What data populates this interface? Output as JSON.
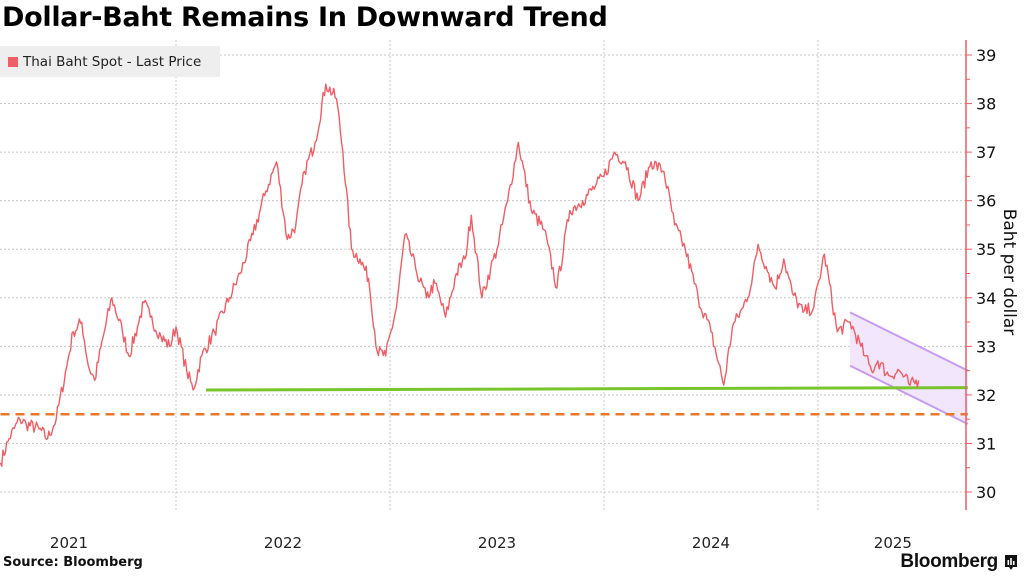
{
  "header": {
    "title": "Dollar-Baht Remains In Downward Trend"
  },
  "footer": {
    "source": "Source: Bloomberg",
    "brand": "Bloomberg",
    "brand_icon": "bloomberg-terminal-icon"
  },
  "colors": {
    "series": "#ef5e64",
    "axis": "#ef5e64",
    "support_line": "#7ac52e",
    "dashed_line": "#e8792b",
    "channel_stroke": "#c79cf0",
    "channel_fill": "#f1e6fb",
    "grid": "#c8c8c8"
  },
  "chart_data": {
    "type": "line",
    "title": "Dollar-Baht Remains In Downward Trend",
    "xlabel": "",
    "ylabel": "Baht per dollar",
    "ylim": [
      29.7,
      39.3
    ],
    "xlim": [
      2021.18,
      2025.7
    ],
    "y_ticks": [
      30,
      31,
      32,
      33,
      34,
      35,
      36,
      37,
      38,
      39
    ],
    "y_tick_labels": [
      "30",
      "31",
      "32",
      "33",
      "34",
      "35",
      "36",
      "37",
      "38",
      "39"
    ],
    "x_tick_labels": [
      {
        "label": "2021",
        "at": 2021.5
      },
      {
        "label": "2022",
        "at": 2022.5
      },
      {
        "label": "2023",
        "at": 2023.5
      },
      {
        "label": "2024",
        "at": 2024.5
      },
      {
        "label": "2025",
        "at": 2025.35
      }
    ],
    "x_gridlines": [
      2022,
      2023,
      2024,
      2025
    ],
    "grid": true,
    "legend": {
      "position": "top-left",
      "entries": [
        "Thai Baht Spot - Last Price"
      ]
    },
    "series": [
      {
        "name": "Thai Baht Spot - Last Price",
        "x": [
          2021.18,
          2021.22,
          2021.27,
          2021.3,
          2021.36,
          2021.4,
          2021.44,
          2021.49,
          2021.52,
          2021.56,
          2021.59,
          2021.62,
          2021.66,
          2021.7,
          2021.75,
          2021.78,
          2021.82,
          2021.85,
          2021.88,
          2021.93,
          2021.97,
          2022.0,
          2022.05,
          2022.08,
          2022.12,
          2022.18,
          2022.25,
          2022.3,
          2022.36,
          2022.42,
          2022.47,
          2022.52,
          2022.56,
          2022.6,
          2022.65,
          2022.7,
          2022.75,
          2022.78,
          2022.82,
          2022.86,
          2022.9,
          2022.94,
          2022.98,
          2023.03,
          2023.07,
          2023.12,
          2023.17,
          2023.21,
          2023.26,
          2023.31,
          2023.35,
          2023.38,
          2023.43,
          2023.47,
          2023.5,
          2023.55,
          2023.6,
          2023.66,
          2023.72,
          2023.78,
          2023.84,
          2023.9,
          2023.96,
          2024.0,
          2024.05,
          2024.1,
          2024.16,
          2024.22,
          2024.28,
          2024.33,
          2024.38,
          2024.44,
          2024.5,
          2024.56,
          2024.6,
          2024.65,
          2024.69,
          2024.72,
          2024.77,
          2024.8,
          2024.84,
          2024.88,
          2024.93,
          2024.98,
          2025.03,
          2025.09,
          2025.15,
          2025.2,
          2025.22,
          2025.25,
          2025.28,
          2025.33,
          2025.38,
          2025.43,
          2025.47
        ],
        "values": [
          30.6,
          31.1,
          31.5,
          31.4,
          31.3,
          31.1,
          31.5,
          32.6,
          33.3,
          33.5,
          32.6,
          32.3,
          33.2,
          34.0,
          33.3,
          32.8,
          33.4,
          33.9,
          33.6,
          33.2,
          33.0,
          33.4,
          32.5,
          32.1,
          32.8,
          33.3,
          34.0,
          34.5,
          35.3,
          36.2,
          36.8,
          35.2,
          35.5,
          36.6,
          37.2,
          38.4,
          38.1,
          37.0,
          35.0,
          34.8,
          34.4,
          32.9,
          32.8,
          33.8,
          35.3,
          34.6,
          34.0,
          34.3,
          33.6,
          34.5,
          34.8,
          35.7,
          34.0,
          34.6,
          35.0,
          36.0,
          37.2,
          35.8,
          35.4,
          34.2,
          35.8,
          36.0,
          36.3,
          36.5,
          37.0,
          36.8,
          36.0,
          36.8,
          36.6,
          35.5,
          35.0,
          34.0,
          33.3,
          32.2,
          33.4,
          33.8,
          34.3,
          35.1,
          34.5,
          34.2,
          34.8,
          34.1,
          33.7,
          33.8,
          34.9,
          33.3,
          33.5,
          33.0,
          32.8,
          32.5,
          32.7,
          32.4,
          32.5,
          32.2,
          32.3
        ]
      }
    ],
    "annotations": [
      {
        "type": "horizontal-line",
        "name": "support-line",
        "style": "solid",
        "color": "green",
        "from": [
          2022.14,
          32.1
        ],
        "to": [
          2025.7,
          32.15
        ]
      },
      {
        "type": "horizontal-line",
        "name": "reference-line",
        "style": "dashed",
        "color": "orange",
        "from": [
          2021.18,
          31.6
        ],
        "to": [
          2025.7,
          31.6
        ]
      },
      {
        "type": "channel",
        "name": "downtrend-channel",
        "color": "purple",
        "upper": [
          [
            2025.15,
            33.7
          ],
          [
            2025.7,
            32.5
          ]
        ],
        "lower": [
          [
            2025.15,
            32.6
          ],
          [
            2025.7,
            31.4
          ]
        ]
      }
    ]
  }
}
